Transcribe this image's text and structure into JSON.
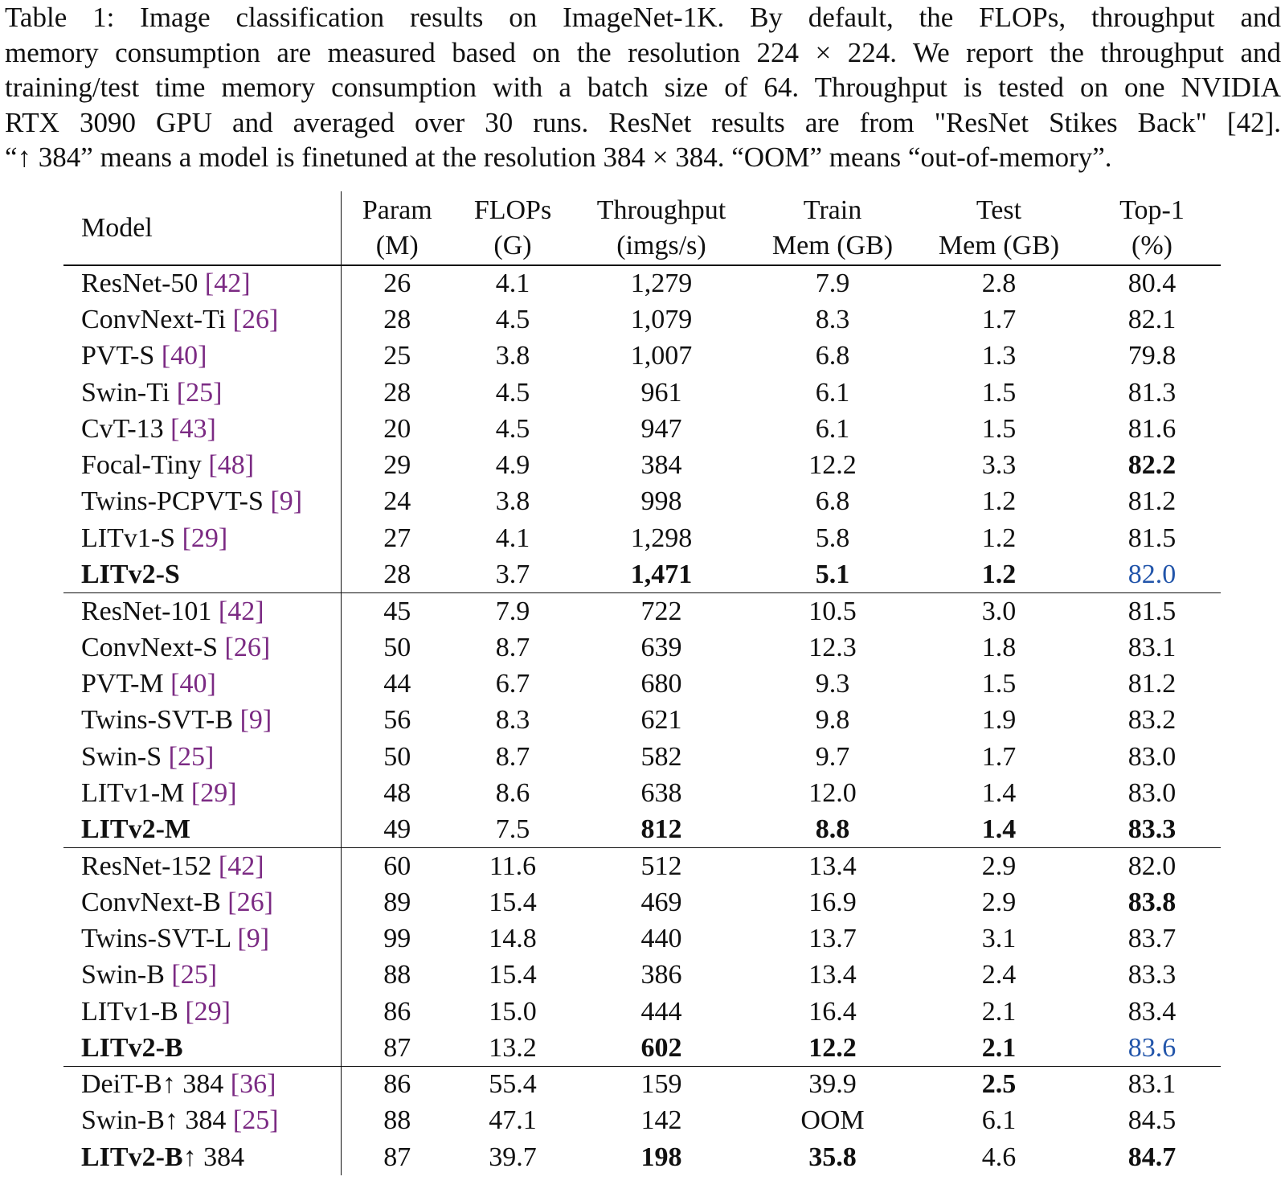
{
  "caption": {
    "lines": [
      "Table 1: Image classification results on ImageNet-1K. By default, the FLOPs, throughput and",
      "memory consumption are measured based on the resolution 224 × 224. We report the throughput and",
      "training/test time memory consumption with a batch size of 64. Throughput is tested on one NVIDIA",
      "RTX 3090 GPU and averaged over 30 runs.  ResNet results are from \"ResNet Stikes Back\" [42].",
      "“↑ 384” means a model is finetuned at the resolution 384 × 384. “OOM” means “out-of-memory”."
    ]
  },
  "table": {
    "headers": {
      "model": "Model",
      "param": [
        "Param",
        "(M)"
      ],
      "flops": [
        "FLOPs",
        "(G)"
      ],
      "throughput": [
        "Throughput",
        "(imgs/s)"
      ],
      "train_mem": [
        "Train",
        "Mem (GB)"
      ],
      "test_mem": [
        "Test",
        "Mem (GB)"
      ],
      "top1": [
        "Top-1",
        "(%)"
      ]
    },
    "groups": [
      [
        {
          "name": "ResNet-50",
          "ref": "[42]",
          "param": "26",
          "flops": "4.1",
          "throughput": "1,279",
          "train": "7.9",
          "test": "2.8",
          "top1": "80.4"
        },
        {
          "name": "ConvNext-Ti",
          "ref": "[26]",
          "param": "28",
          "flops": "4.5",
          "throughput": "1,079",
          "train": "8.3",
          "test": "1.7",
          "top1": "82.1"
        },
        {
          "name": "PVT-S",
          "ref": "[40]",
          "param": "25",
          "flops": "3.8",
          "throughput": "1,007",
          "train": "6.8",
          "test": "1.3",
          "top1": "79.8"
        },
        {
          "name": "Swin-Ti",
          "ref": "[25]",
          "param": "28",
          "flops": "4.5",
          "throughput": "961",
          "train": "6.1",
          "test": "1.5",
          "top1": "81.3"
        },
        {
          "name": "CvT-13",
          "ref": "[43]",
          "param": "20",
          "flops": "4.5",
          "throughput": "947",
          "train": "6.1",
          "test": "1.5",
          "top1": "81.6"
        },
        {
          "name": "Focal-Tiny",
          "ref": "[48]",
          "param": "29",
          "flops": "4.9",
          "throughput": "384",
          "train": "12.2",
          "test": "3.3",
          "top1": "82.2",
          "bold": [
            "top1"
          ]
        },
        {
          "name": "Twins-PCPVT-S",
          "ref": "[9]",
          "param": "24",
          "flops": "3.8",
          "throughput": "998",
          "train": "6.8",
          "test": "1.2",
          "top1": "81.2"
        },
        {
          "name": "LITv1-S",
          "ref": "[29]",
          "param": "27",
          "flops": "4.1",
          "throughput": "1,298",
          "train": "5.8",
          "test": "1.2",
          "top1": "81.5"
        },
        {
          "name": "LITv2-S",
          "ref": "",
          "param": "28",
          "flops": "3.7",
          "throughput": "1,471",
          "train": "5.1",
          "test": "1.2",
          "top1": "82.0",
          "bold": [
            "name",
            "throughput",
            "train",
            "test"
          ],
          "blue": [
            "top1"
          ]
        }
      ],
      [
        {
          "name": "ResNet-101",
          "ref": "[42]",
          "param": "45",
          "flops": "7.9",
          "throughput": "722",
          "train": "10.5",
          "test": "3.0",
          "top1": "81.5"
        },
        {
          "name": "ConvNext-S",
          "ref": "[26]",
          "param": "50",
          "flops": "8.7",
          "throughput": "639",
          "train": "12.3",
          "test": "1.8",
          "top1": "83.1"
        },
        {
          "name": "PVT-M",
          "ref": "[40]",
          "param": "44",
          "flops": "6.7",
          "throughput": "680",
          "train": "9.3",
          "test": "1.5",
          "top1": "81.2"
        },
        {
          "name": "Twins-SVT-B",
          "ref": "[9]",
          "param": "56",
          "flops": "8.3",
          "throughput": "621",
          "train": "9.8",
          "test": "1.9",
          "top1": "83.2"
        },
        {
          "name": "Swin-S",
          "ref": "[25]",
          "param": "50",
          "flops": "8.7",
          "throughput": "582",
          "train": "9.7",
          "test": "1.7",
          "top1": "83.0"
        },
        {
          "name": "LITv1-M",
          "ref": "[29]",
          "param": "48",
          "flops": "8.6",
          "throughput": "638",
          "train": "12.0",
          "test": "1.4",
          "top1": "83.0"
        },
        {
          "name": "LITv2-M",
          "ref": "",
          "param": "49",
          "flops": "7.5",
          "throughput": "812",
          "train": "8.8",
          "test": "1.4",
          "top1": "83.3",
          "bold": [
            "name",
            "throughput",
            "train",
            "test",
            "top1"
          ]
        }
      ],
      [
        {
          "name": "ResNet-152",
          "ref": "[42]",
          "param": "60",
          "flops": "11.6",
          "throughput": "512",
          "train": "13.4",
          "test": "2.9",
          "top1": "82.0"
        },
        {
          "name": "ConvNext-B",
          "ref": "[26]",
          "param": "89",
          "flops": "15.4",
          "throughput": "469",
          "train": "16.9",
          "test": "2.9",
          "top1": "83.8",
          "bold": [
            "top1"
          ]
        },
        {
          "name": "Twins-SVT-L",
          "ref": "[9]",
          "param": "99",
          "flops": "14.8",
          "throughput": "440",
          "train": "13.7",
          "test": "3.1",
          "top1": "83.7"
        },
        {
          "name": "Swin-B",
          "ref": "[25]",
          "param": "88",
          "flops": "15.4",
          "throughput": "386",
          "train": "13.4",
          "test": "2.4",
          "top1": "83.3"
        },
        {
          "name": "LITv1-B",
          "ref": "[29]",
          "param": "86",
          "flops": "15.0",
          "throughput": "444",
          "train": "16.4",
          "test": "2.1",
          "top1": "83.4"
        },
        {
          "name": "LITv2-B",
          "ref": "",
          "param": "87",
          "flops": "13.2",
          "throughput": "602",
          "train": "12.2",
          "test": "2.1",
          "top1": "83.6",
          "bold": [
            "name",
            "throughput",
            "train",
            "test"
          ],
          "blue": [
            "top1"
          ]
        }
      ],
      [
        {
          "name": "DeiT-B↑ 384",
          "ref": "[36]",
          "param": "86",
          "flops": "55.4",
          "throughput": "159",
          "train": "39.9",
          "test": "2.5",
          "top1": "83.1",
          "bold": [
            "test"
          ]
        },
        {
          "name": "Swin-B↑ 384",
          "ref": "[25]",
          "param": "88",
          "flops": "47.1",
          "throughput": "142",
          "train": "OOM",
          "test": "6.1",
          "top1": "84.5"
        },
        {
          "name": "LITv2-B",
          "suffix": "↑ 384",
          "ref": "",
          "param": "87",
          "flops": "39.7",
          "throughput": "198",
          "train": "35.8",
          "test": "4.6",
          "top1": "84.7",
          "bold": [
            "name",
            "throughput",
            "train",
            "top1"
          ]
        }
      ]
    ]
  }
}
